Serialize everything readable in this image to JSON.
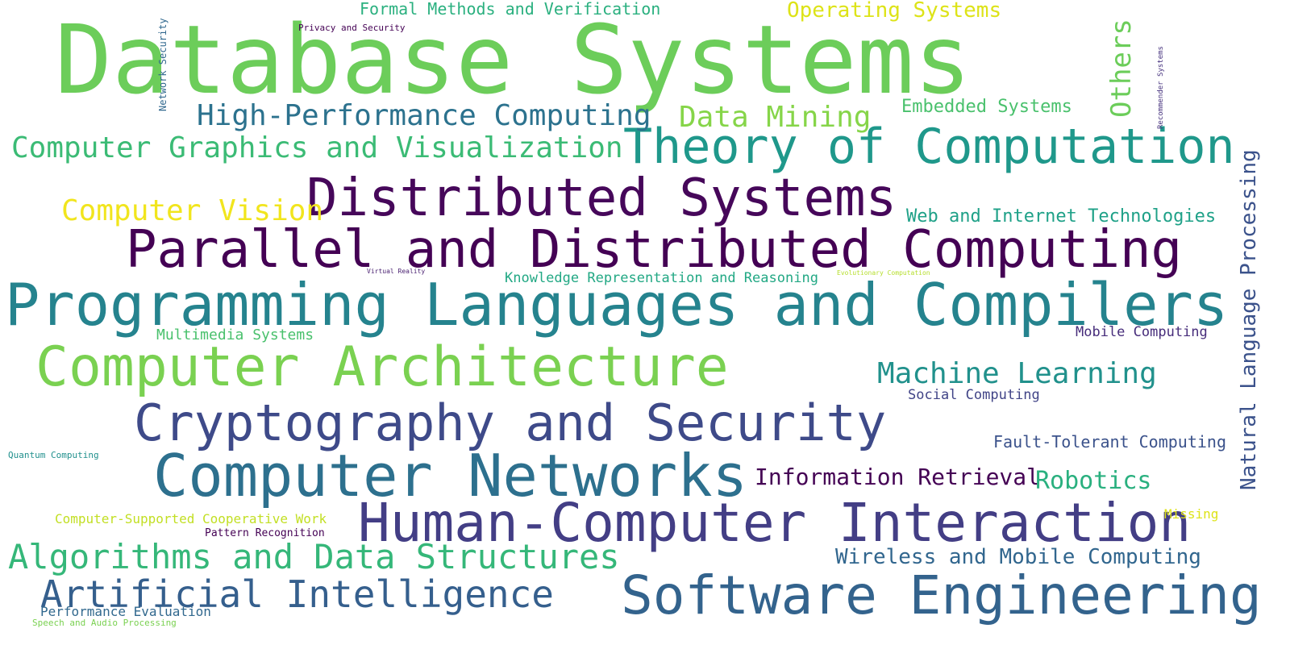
{
  "words": [
    {
      "text": "Database Systems",
      "color": "#6ccd5a"
    },
    {
      "text": "Theory of Computation",
      "color": "#1f988b"
    },
    {
      "text": "Distributed Systems",
      "color": "#46075a"
    },
    {
      "text": "Parallel and Distributed Computing",
      "color": "#440154"
    },
    {
      "text": "Programming Languages and Compilers",
      "color": "#25838e"
    },
    {
      "text": "Computer Architecture",
      "color": "#7ad151"
    },
    {
      "text": "Cryptography and Security",
      "color": "#3e4a89"
    },
    {
      "text": "Computer Networks",
      "color": "#2d708e"
    },
    {
      "text": "Human-Computer Interaction",
      "color": "#433e85"
    },
    {
      "text": "Software Engineering",
      "color": "#33638d"
    },
    {
      "text": "Algorithms and Data Structures",
      "color": "#35b779"
    },
    {
      "text": "Artificial Intelligence",
      "color": "#355f8d"
    },
    {
      "text": "High-Performance Computing",
      "color": "#2c728e"
    },
    {
      "text": "Computer Graphics and Visualization",
      "color": "#3bbb75"
    },
    {
      "text": "Computer Vision",
      "color": "#f1e51d"
    },
    {
      "text": "Data Mining",
      "color": "#86d549"
    },
    {
      "text": "Machine Learning",
      "color": "#21918c"
    },
    {
      "text": "Information Retrieval",
      "color": "#440154"
    },
    {
      "text": "Robotics",
      "color": "#2ab07f"
    },
    {
      "text": "Wireless and Mobile Computing",
      "color": "#31668e"
    },
    {
      "text": "Formal Methods and Verification",
      "color": "#2ab07f"
    },
    {
      "text": "Operating Systems",
      "color": "#dde318"
    },
    {
      "text": "Embedded Systems",
      "color": "#4ac16d"
    },
    {
      "text": "Others",
      "color": "#6ccd5a"
    },
    {
      "text": "Web and Internet Technologies",
      "color": "#1fa188"
    },
    {
      "text": "Natural Language Processing",
      "color": "#3b528b"
    },
    {
      "text": "Knowledge Representation and Reasoning",
      "color": "#22a884"
    },
    {
      "text": "Multimedia Systems",
      "color": "#4ac16d"
    },
    {
      "text": "Mobile Computing",
      "color": "#472d7b"
    },
    {
      "text": "Social Computing",
      "color": "#414487"
    },
    {
      "text": "Fault-Tolerant Computing",
      "color": "#3b528b"
    },
    {
      "text": "Computer-Supported Cooperative Work",
      "color": "#c2df23"
    },
    {
      "text": "Missing",
      "color": "#dde318"
    },
    {
      "text": "Pattern Recognition",
      "color": "#440154"
    },
    {
      "text": "Performance Evaluation",
      "color": "#31688e"
    },
    {
      "text": "Speech and Audio Processing",
      "color": "#7ad151"
    },
    {
      "text": "Quantum Computing",
      "color": "#21908d"
    },
    {
      "text": "Privacy and Security",
      "color": "#440154"
    },
    {
      "text": "Network Security",
      "color": "#31688e"
    },
    {
      "text": "Recommender Systems",
      "color": "#46327e"
    },
    {
      "text": "Virtual Reality",
      "color": "#481f70"
    },
    {
      "text": "Evolutionary Computation",
      "color": "#b5de2b"
    }
  ]
}
